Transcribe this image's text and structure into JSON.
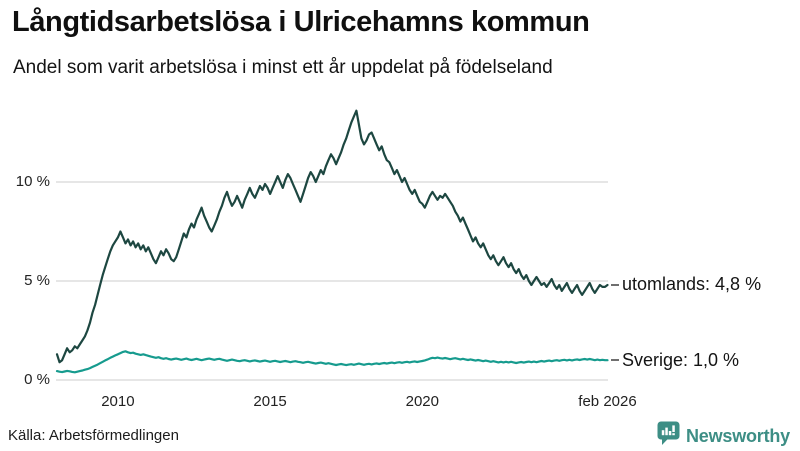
{
  "chart_data": {
    "type": "line",
    "title": "Långtidsarbetslösa i Ulricehamns kommun",
    "subtitle": "Andel som varit arbetslösa i minst ett år uppdelat på födelseland",
    "unit": "%",
    "frequency": "monthly",
    "x_start_year": 2008.0,
    "x_end_year": 2026.083,
    "ylim": [
      0,
      14.2
    ],
    "grid": true,
    "gridline_color": "#dddddd",
    "legend_position": "end-of-line-labels",
    "xticks": [
      {
        "label": "2010",
        "year": 2010
      },
      {
        "label": "2015",
        "year": 2015
      },
      {
        "label": "2020",
        "year": 2020
      },
      {
        "label": "feb 2026",
        "year": 2026.083
      }
    ],
    "yticks": [
      {
        "label": "10 %",
        "value": 10
      },
      {
        "label": "5 %",
        "value": 5
      },
      {
        "label": "0 %",
        "value": 0
      }
    ],
    "series": [
      {
        "name": "utomlands",
        "end_label": "utomlands: 4,8 %",
        "last_value_label": "4,8 %",
        "color": "#1d4741",
        "values": [
          1.3,
          0.9,
          1.0,
          1.3,
          1.6,
          1.4,
          1.5,
          1.7,
          1.6,
          1.8,
          2.0,
          2.2,
          2.5,
          2.9,
          3.4,
          3.8,
          4.3,
          4.8,
          5.3,
          5.7,
          6.1,
          6.5,
          6.8,
          7.0,
          7.2,
          7.5,
          7.2,
          6.9,
          7.1,
          6.8,
          7.0,
          6.7,
          6.9,
          6.6,
          6.8,
          6.5,
          6.7,
          6.4,
          6.1,
          5.9,
          6.2,
          6.5,
          6.3,
          6.6,
          6.4,
          6.1,
          6.0,
          6.2,
          6.6,
          7.0,
          7.4,
          7.2,
          7.6,
          7.9,
          7.7,
          8.1,
          8.4,
          8.7,
          8.3,
          8.0,
          7.7,
          7.5,
          7.8,
          8.1,
          8.5,
          8.8,
          9.2,
          9.5,
          9.1,
          8.8,
          9.0,
          9.3,
          9.0,
          8.7,
          9.1,
          9.4,
          9.7,
          9.4,
          9.2,
          9.5,
          9.8,
          9.6,
          9.9,
          9.7,
          9.4,
          9.7,
          10.0,
          10.3,
          10.0,
          9.7,
          10.1,
          10.4,
          10.2,
          9.9,
          9.6,
          9.3,
          9.0,
          9.4,
          9.8,
          10.2,
          10.5,
          10.3,
          10.0,
          10.3,
          10.6,
          10.4,
          10.8,
          11.1,
          11.4,
          11.2,
          10.9,
          11.2,
          11.5,
          11.9,
          12.2,
          12.6,
          13.0,
          13.3,
          13.6,
          12.9,
          12.2,
          11.9,
          12.1,
          12.4,
          12.5,
          12.2,
          11.9,
          11.6,
          11.8,
          11.4,
          11.1,
          11.0,
          10.7,
          10.4,
          10.6,
          10.3,
          10.0,
          10.2,
          9.9,
          9.6,
          9.4,
          9.6,
          9.3,
          9.0,
          8.9,
          8.7,
          9.0,
          9.3,
          9.5,
          9.3,
          9.1,
          9.3,
          9.2,
          9.4,
          9.2,
          9.0,
          8.8,
          8.5,
          8.3,
          8.0,
          8.2,
          7.9,
          7.6,
          7.3,
          7.0,
          7.2,
          6.9,
          6.7,
          6.9,
          6.6,
          6.3,
          6.1,
          6.3,
          6.0,
          5.8,
          6.0,
          6.2,
          5.9,
          5.7,
          5.9,
          5.6,
          5.4,
          5.6,
          5.3,
          5.1,
          5.3,
          5.0,
          4.8,
          5.0,
          5.2,
          5.0,
          4.8,
          4.9,
          4.7,
          4.9,
          5.1,
          4.8,
          4.6,
          4.8,
          4.5,
          4.7,
          4.9,
          4.6,
          4.4,
          4.6,
          4.8,
          4.5,
          4.3,
          4.5,
          4.7,
          4.9,
          4.6,
          4.4,
          4.6,
          4.8,
          4.7,
          4.7,
          4.8
        ]
      },
      {
        "name": "Sverige",
        "end_label": "Sverige: 1,0 %",
        "last_value_label": "1,0 %",
        "color": "#169b8e",
        "values": [
          0.45,
          0.42,
          0.4,
          0.43,
          0.46,
          0.44,
          0.41,
          0.39,
          0.42,
          0.45,
          0.48,
          0.52,
          0.55,
          0.6,
          0.66,
          0.72,
          0.78,
          0.85,
          0.92,
          0.99,
          1.05,
          1.12,
          1.18,
          1.24,
          1.3,
          1.36,
          1.42,
          1.45,
          1.4,
          1.36,
          1.38,
          1.33,
          1.3,
          1.27,
          1.3,
          1.26,
          1.22,
          1.18,
          1.15,
          1.12,
          1.15,
          1.1,
          1.07,
          1.1,
          1.06,
          1.03,
          1.06,
          1.08,
          1.05,
          1.02,
          1.05,
          1.08,
          1.04,
          1.01,
          1.04,
          1.07,
          1.03,
          1.0,
          1.03,
          1.06,
          1.08,
          1.05,
          1.02,
          1.05,
          1.07,
          1.03,
          1.0,
          0.97,
          1.0,
          1.03,
          1.0,
          0.97,
          0.95,
          0.98,
          1.0,
          0.97,
          0.94,
          0.97,
          0.99,
          0.96,
          0.93,
          0.96,
          0.98,
          0.95,
          0.92,
          0.95,
          0.97,
          0.94,
          0.91,
          0.94,
          0.96,
          0.93,
          0.9,
          0.93,
          0.95,
          0.92,
          0.9,
          0.87,
          0.9,
          0.92,
          0.89,
          0.86,
          0.83,
          0.86,
          0.88,
          0.85,
          0.82,
          0.85,
          0.82,
          0.79,
          0.76,
          0.79,
          0.81,
          0.78,
          0.75,
          0.78,
          0.8,
          0.77,
          0.8,
          0.83,
          0.8,
          0.77,
          0.8,
          0.82,
          0.79,
          0.82,
          0.84,
          0.81,
          0.84,
          0.86,
          0.83,
          0.86,
          0.88,
          0.85,
          0.88,
          0.9,
          0.87,
          0.9,
          0.92,
          0.89,
          0.92,
          0.94,
          0.91,
          0.94,
          0.96,
          0.99,
          1.03,
          1.08,
          1.12,
          1.1,
          1.13,
          1.1,
          1.08,
          1.11,
          1.08,
          1.05,
          1.08,
          1.1,
          1.07,
          1.04,
          1.07,
          1.04,
          1.01,
          1.04,
          1.01,
          0.98,
          1.01,
          0.98,
          0.95,
          0.98,
          0.95,
          0.92,
          0.95,
          0.92,
          0.89,
          0.92,
          0.89,
          0.92,
          0.89,
          0.92,
          0.89,
          0.86,
          0.89,
          0.91,
          0.88,
          0.91,
          0.93,
          0.9,
          0.93,
          0.9,
          0.93,
          0.96,
          0.93,
          0.96,
          0.98,
          0.95,
          0.98,
          1.0,
          0.97,
          1.0,
          1.02,
          0.99,
          1.02,
          0.99,
          1.02,
          1.04,
          1.01,
          1.04,
          1.06,
          1.03,
          1.06,
          1.03,
          1.0,
          1.03,
          1.0,
          1.02,
          1.0,
          1.0
        ]
      }
    ]
  },
  "footer": {
    "source": "Källa: Arbetsförmedlingen",
    "brand": "Newsworthy",
    "brand_color": "#3d8e85"
  }
}
